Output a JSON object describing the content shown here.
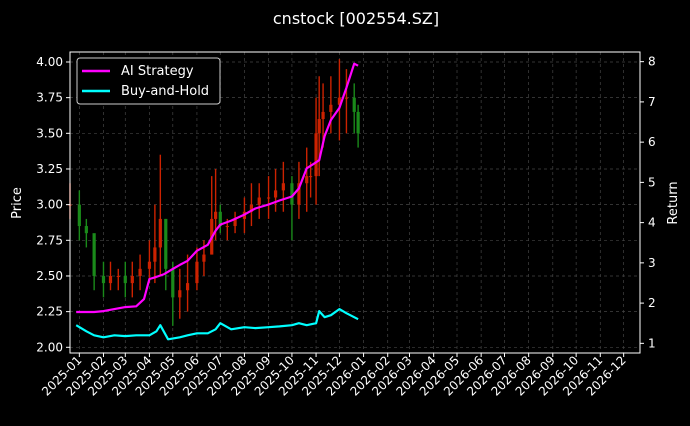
{
  "chart_data": {
    "type": "line",
    "title": "cnstock [002554.SZ]",
    "ylabel_left": "Price",
    "ylabel_right": "Return",
    "xlabel": "",
    "ylim_left": [
      1.96,
      4.07
    ],
    "ylim_right": [
      0.76,
      8.24
    ],
    "yticks_left": [
      "2.00",
      "2.25",
      "2.50",
      "2.75",
      "3.00",
      "3.25",
      "3.50",
      "3.75",
      "4.00"
    ],
    "yticks_right": [
      "1",
      "2",
      "3",
      "4",
      "5",
      "6",
      "7",
      "8"
    ],
    "xticks": [
      "2025-01",
      "2025-02",
      "2025-03",
      "2025-04",
      "2025-05",
      "2025-06",
      "2025-07",
      "2025-08",
      "2025-09",
      "2025-10",
      "2025-11",
      "2025-12",
      "2026-01",
      "2026-02",
      "2026-03",
      "2026-04",
      "2026-05",
      "2026-06",
      "2026-07",
      "2026-08",
      "2026-09",
      "2026-10",
      "2026-11",
      "2026-12"
    ],
    "grid": true,
    "legend_position": "top-left",
    "colors": {
      "background": "#000000",
      "grid": "#444444",
      "candle_up": "#cc2200",
      "candle_down": "#1a8a1a",
      "ai_strategy": "#ff00ff",
      "buy_and_hold": "#00ffff"
    },
    "price_series": {
      "x": [
        "2024-12-20",
        "2025-01-01",
        "2025-01-10",
        "2025-01-20",
        "2025-02-01",
        "2025-02-10",
        "2025-02-20",
        "2025-03-01",
        "2025-03-10",
        "2025-03-20",
        "2025-04-01",
        "2025-04-08",
        "2025-04-15",
        "2025-04-22",
        "2025-05-01",
        "2025-05-10",
        "2025-05-20",
        "2025-06-01",
        "2025-06-10",
        "2025-06-20",
        "2025-06-25",
        "2025-07-01",
        "2025-07-10",
        "2025-07-20",
        "2025-08-01",
        "2025-08-10",
        "2025-08-20",
        "2025-09-01",
        "2025-09-10",
        "2025-09-20",
        "2025-10-01",
        "2025-10-10",
        "2025-10-20",
        "2025-10-25",
        "2025-11-01",
        "2025-11-05",
        "2025-11-10",
        "2025-11-20",
        "2025-12-01",
        "2025-12-10",
        "2025-12-20",
        "2025-12-25"
      ],
      "low": [
        2.9,
        2.75,
        2.7,
        2.4,
        2.35,
        2.4,
        2.4,
        2.35,
        2.35,
        2.4,
        2.45,
        2.45,
        2.5,
        2.4,
        2.15,
        2.2,
        2.25,
        2.4,
        2.5,
        2.65,
        2.75,
        2.8,
        2.75,
        2.8,
        2.8,
        2.85,
        2.9,
        2.9,
        2.95,
        2.95,
        2.75,
        2.9,
        2.95,
        3.05,
        3.0,
        3.2,
        3.4,
        3.5,
        3.45,
        3.5,
        3.5,
        3.4
      ],
      "high": [
        3.15,
        3.1,
        2.9,
        2.65,
        2.6,
        2.6,
        2.55,
        2.6,
        2.6,
        2.65,
        2.75,
        3.0,
        3.35,
        2.9,
        2.6,
        2.55,
        2.65,
        2.7,
        2.75,
        3.2,
        3.25,
        3.0,
        2.9,
        2.95,
        3.05,
        3.15,
        3.15,
        3.2,
        3.25,
        3.3,
        3.2,
        3.3,
        3.4,
        3.3,
        3.75,
        3.9,
        3.85,
        3.9,
        4.02,
        3.95,
        3.85,
        3.7
      ],
      "close": [
        3.0,
        2.85,
        2.8,
        2.5,
        2.45,
        2.5,
        2.5,
        2.45,
        2.5,
        2.55,
        2.6,
        2.7,
        2.9,
        2.55,
        2.35,
        2.4,
        2.45,
        2.6,
        2.65,
        2.9,
        2.95,
        2.85,
        2.85,
        2.9,
        2.95,
        3.0,
        3.05,
        3.05,
        3.1,
        3.15,
        3.0,
        3.15,
        3.2,
        3.2,
        3.5,
        3.6,
        3.65,
        3.7,
        3.75,
        3.75,
        3.65,
        3.5
      ]
    },
    "series": [
      {
        "name": "AI Strategy",
        "axis": "right",
        "x": [
          "2024-12-28",
          "2025-01-10",
          "2025-01-20",
          "2025-02-01",
          "2025-02-15",
          "2025-03-01",
          "2025-03-15",
          "2025-03-25",
          "2025-04-01",
          "2025-04-10",
          "2025-04-20",
          "2025-05-01",
          "2025-05-10",
          "2025-05-20",
          "2025-06-01",
          "2025-06-15",
          "2025-06-25",
          "2025-07-01",
          "2025-07-15",
          "2025-08-01",
          "2025-08-15",
          "2025-09-01",
          "2025-09-15",
          "2025-10-01",
          "2025-10-10",
          "2025-10-20",
          "2025-10-28",
          "2025-11-05",
          "2025-11-12",
          "2025-11-20",
          "2025-12-01",
          "2025-12-10",
          "2025-12-20",
          "2025-12-25"
        ],
        "values": [
          1.78,
          1.78,
          1.78,
          1.8,
          1.85,
          1.9,
          1.92,
          2.1,
          2.6,
          2.65,
          2.72,
          2.85,
          2.95,
          3.05,
          3.3,
          3.45,
          3.8,
          3.95,
          4.05,
          4.2,
          4.35,
          4.45,
          4.55,
          4.65,
          4.85,
          5.35,
          5.45,
          5.55,
          6.15,
          6.55,
          6.85,
          7.35,
          7.95,
          7.9
        ]
      },
      {
        "name": "Buy-and-Hold",
        "axis": "right",
        "x": [
          "2024-12-28",
          "2025-01-10",
          "2025-01-20",
          "2025-02-01",
          "2025-02-15",
          "2025-03-01",
          "2025-03-15",
          "2025-04-01",
          "2025-04-10",
          "2025-04-15",
          "2025-04-25",
          "2025-05-10",
          "2025-05-20",
          "2025-06-01",
          "2025-06-15",
          "2025-06-25",
          "2025-07-01",
          "2025-07-15",
          "2025-08-01",
          "2025-08-15",
          "2025-09-01",
          "2025-09-15",
          "2025-10-01",
          "2025-10-10",
          "2025-10-20",
          "2025-11-01",
          "2025-11-05",
          "2025-11-12",
          "2025-11-20",
          "2025-12-01",
          "2025-12-10",
          "2025-12-20",
          "2025-12-25"
        ],
        "values": [
          1.45,
          1.3,
          1.2,
          1.15,
          1.2,
          1.18,
          1.2,
          1.2,
          1.3,
          1.45,
          1.1,
          1.15,
          1.2,
          1.25,
          1.25,
          1.35,
          1.5,
          1.35,
          1.4,
          1.38,
          1.4,
          1.42,
          1.45,
          1.5,
          1.45,
          1.5,
          1.8,
          1.65,
          1.7,
          1.85,
          1.75,
          1.65,
          1.6
        ]
      }
    ]
  }
}
